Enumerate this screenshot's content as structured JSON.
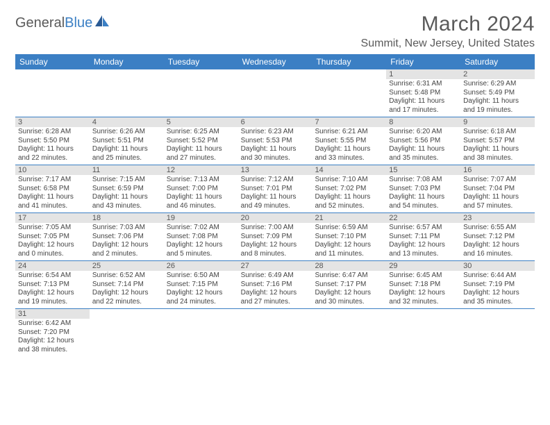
{
  "logo": {
    "word1": "General",
    "word2": "Blue"
  },
  "title": "March 2024",
  "location": "Summit, New Jersey, United States",
  "colors": {
    "headerBar": "#3b7fc4",
    "dayNumBg": "#e4e4e4",
    "weekBorder": "#3b7fc4",
    "textMuted": "#5a5a5a"
  },
  "dayNames": [
    "Sunday",
    "Monday",
    "Tuesday",
    "Wednesday",
    "Thursday",
    "Friday",
    "Saturday"
  ],
  "weeks": [
    [
      {
        "blank": true
      },
      {
        "blank": true
      },
      {
        "blank": true
      },
      {
        "blank": true
      },
      {
        "blank": true
      },
      {
        "n": "1",
        "sunrise": "6:31 AM",
        "sunset": "5:48 PM",
        "daylight": "11 hours and 17 minutes."
      },
      {
        "n": "2",
        "sunrise": "6:29 AM",
        "sunset": "5:49 PM",
        "daylight": "11 hours and 19 minutes."
      }
    ],
    [
      {
        "n": "3",
        "sunrise": "6:28 AM",
        "sunset": "5:50 PM",
        "daylight": "11 hours and 22 minutes."
      },
      {
        "n": "4",
        "sunrise": "6:26 AM",
        "sunset": "5:51 PM",
        "daylight": "11 hours and 25 minutes."
      },
      {
        "n": "5",
        "sunrise": "6:25 AM",
        "sunset": "5:52 PM",
        "daylight": "11 hours and 27 minutes."
      },
      {
        "n": "6",
        "sunrise": "6:23 AM",
        "sunset": "5:53 PM",
        "daylight": "11 hours and 30 minutes."
      },
      {
        "n": "7",
        "sunrise": "6:21 AM",
        "sunset": "5:55 PM",
        "daylight": "11 hours and 33 minutes."
      },
      {
        "n": "8",
        "sunrise": "6:20 AM",
        "sunset": "5:56 PM",
        "daylight": "11 hours and 35 minutes."
      },
      {
        "n": "9",
        "sunrise": "6:18 AM",
        "sunset": "5:57 PM",
        "daylight": "11 hours and 38 minutes."
      }
    ],
    [
      {
        "n": "10",
        "sunrise": "7:17 AM",
        "sunset": "6:58 PM",
        "daylight": "11 hours and 41 minutes."
      },
      {
        "n": "11",
        "sunrise": "7:15 AM",
        "sunset": "6:59 PM",
        "daylight": "11 hours and 43 minutes."
      },
      {
        "n": "12",
        "sunrise": "7:13 AM",
        "sunset": "7:00 PM",
        "daylight": "11 hours and 46 minutes."
      },
      {
        "n": "13",
        "sunrise": "7:12 AM",
        "sunset": "7:01 PM",
        "daylight": "11 hours and 49 minutes."
      },
      {
        "n": "14",
        "sunrise": "7:10 AM",
        "sunset": "7:02 PM",
        "daylight": "11 hours and 52 minutes."
      },
      {
        "n": "15",
        "sunrise": "7:08 AM",
        "sunset": "7:03 PM",
        "daylight": "11 hours and 54 minutes."
      },
      {
        "n": "16",
        "sunrise": "7:07 AM",
        "sunset": "7:04 PM",
        "daylight": "11 hours and 57 minutes."
      }
    ],
    [
      {
        "n": "17",
        "sunrise": "7:05 AM",
        "sunset": "7:05 PM",
        "daylight": "12 hours and 0 minutes."
      },
      {
        "n": "18",
        "sunrise": "7:03 AM",
        "sunset": "7:06 PM",
        "daylight": "12 hours and 2 minutes."
      },
      {
        "n": "19",
        "sunrise": "7:02 AM",
        "sunset": "7:08 PM",
        "daylight": "12 hours and 5 minutes."
      },
      {
        "n": "20",
        "sunrise": "7:00 AM",
        "sunset": "7:09 PM",
        "daylight": "12 hours and 8 minutes."
      },
      {
        "n": "21",
        "sunrise": "6:59 AM",
        "sunset": "7:10 PM",
        "daylight": "12 hours and 11 minutes."
      },
      {
        "n": "22",
        "sunrise": "6:57 AM",
        "sunset": "7:11 PM",
        "daylight": "12 hours and 13 minutes."
      },
      {
        "n": "23",
        "sunrise": "6:55 AM",
        "sunset": "7:12 PM",
        "daylight": "12 hours and 16 minutes."
      }
    ],
    [
      {
        "n": "24",
        "sunrise": "6:54 AM",
        "sunset": "7:13 PM",
        "daylight": "12 hours and 19 minutes."
      },
      {
        "n": "25",
        "sunrise": "6:52 AM",
        "sunset": "7:14 PM",
        "daylight": "12 hours and 22 minutes."
      },
      {
        "n": "26",
        "sunrise": "6:50 AM",
        "sunset": "7:15 PM",
        "daylight": "12 hours and 24 minutes."
      },
      {
        "n": "27",
        "sunrise": "6:49 AM",
        "sunset": "7:16 PM",
        "daylight": "12 hours and 27 minutes."
      },
      {
        "n": "28",
        "sunrise": "6:47 AM",
        "sunset": "7:17 PM",
        "daylight": "12 hours and 30 minutes."
      },
      {
        "n": "29",
        "sunrise": "6:45 AM",
        "sunset": "7:18 PM",
        "daylight": "12 hours and 32 minutes."
      },
      {
        "n": "30",
        "sunrise": "6:44 AM",
        "sunset": "7:19 PM",
        "daylight": "12 hours and 35 minutes."
      }
    ],
    [
      {
        "n": "31",
        "sunrise": "6:42 AM",
        "sunset": "7:20 PM",
        "daylight": "12 hours and 38 minutes."
      },
      {
        "blank": true
      },
      {
        "blank": true
      },
      {
        "blank": true
      },
      {
        "blank": true
      },
      {
        "blank": true
      },
      {
        "blank": true
      }
    ]
  ],
  "labels": {
    "sunrise": "Sunrise: ",
    "sunset": "Sunset: ",
    "daylight": "Daylight: "
  }
}
